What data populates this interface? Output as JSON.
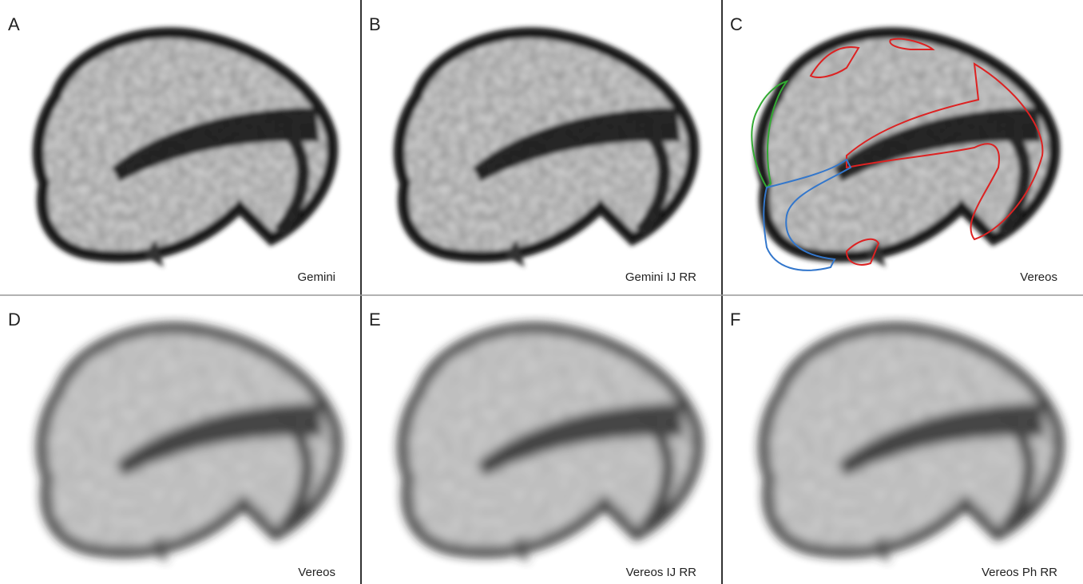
{
  "panels": [
    {
      "letter": "A",
      "caption": "Gemini"
    },
    {
      "letter": "B",
      "caption": "Gemini IJ RR"
    },
    {
      "letter": "C",
      "caption": "Vereos"
    },
    {
      "letter": "D",
      "caption": "Vereos"
    },
    {
      "letter": "E",
      "caption": "Vereos IJ RR"
    },
    {
      "letter": "F",
      "caption": "Vereos Ph RR"
    }
  ]
}
